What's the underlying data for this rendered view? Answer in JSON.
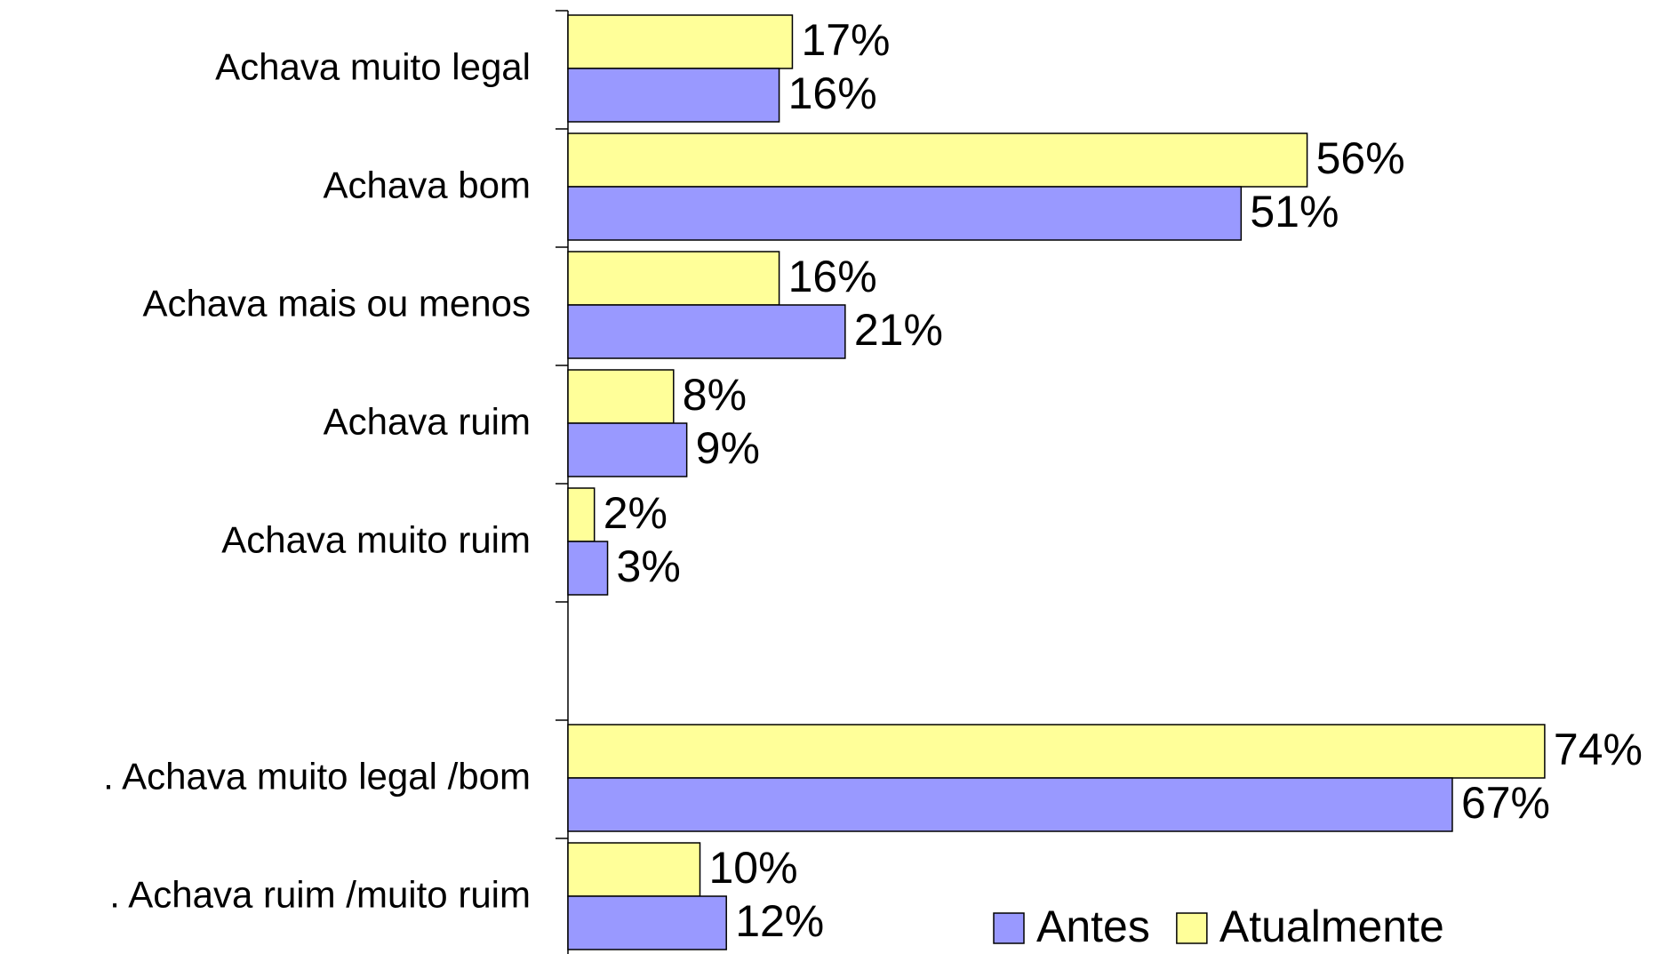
{
  "chart_data": {
    "type": "bar",
    "orientation": "horizontal",
    "categories": [
      "Achava muito legal",
      "Achava bom",
      "Achava mais ou menos",
      "Achava ruim",
      "Achava muito ruim",
      null,
      ". Achava muito legal /bom",
      ". Achava ruim /muito ruim"
    ],
    "series": [
      {
        "name": "Antes",
        "color": "#9999ff",
        "values": [
          16,
          51,
          21,
          9,
          3,
          null,
          67,
          12
        ],
        "value_labels": [
          "16%",
          "51%",
          "21%",
          "9%",
          "3%",
          null,
          "67%",
          "12%"
        ]
      },
      {
        "name": "Atualmente",
        "color": "#ffff99",
        "values": [
          17,
          56,
          16,
          8,
          2,
          null,
          74,
          10
        ],
        "value_labels": [
          "17%",
          "56%",
          "16%",
          "8%",
          "2%",
          null,
          "74%",
          "10%"
        ]
      }
    ]
  }
}
